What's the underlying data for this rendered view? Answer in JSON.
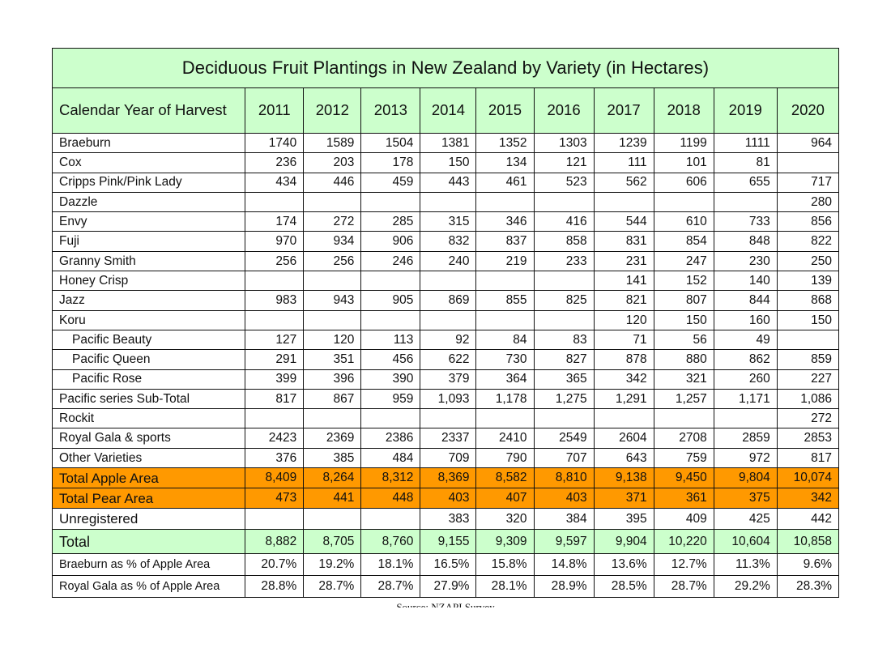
{
  "title": "Deciduous Fruit Plantings in New Zealand by Variety (in Hectares)",
  "row_header": "Calendar Year of Harvest",
  "source": "Source: NZAPI Survey",
  "colors": {
    "header_bg": "#ccffcc",
    "highlight_bg": "#ff9900",
    "border": "#111111"
  },
  "chart_data": {
    "type": "table",
    "title": "Deciduous Fruit Plantings in New Zealand by Variety (in Hectares)",
    "columns": [
      "2011",
      "2012",
      "2013",
      "2014",
      "2015",
      "2016",
      "2017",
      "2018",
      "2019",
      "2020"
    ],
    "rows": [
      {
        "label": "Braeburn",
        "values": [
          "1740",
          "1589",
          "1504",
          "1381",
          "1352",
          "1303",
          "1239",
          "1199",
          "1111",
          "964"
        ]
      },
      {
        "label": "Cox",
        "values": [
          "236",
          "203",
          "178",
          "150",
          "134",
          "121",
          "111",
          "101",
          "81",
          ""
        ]
      },
      {
        "label": "Cripps Pink/Pink Lady",
        "values": [
          "434",
          "446",
          "459",
          "443",
          "461",
          "523",
          "562",
          "606",
          "655",
          "717"
        ]
      },
      {
        "label": "Dazzle",
        "values": [
          "",
          "",
          "",
          "",
          "",
          "",
          "",
          "",
          "",
          "280"
        ]
      },
      {
        "label": "Envy",
        "values": [
          "174",
          "272",
          "285",
          "315",
          "346",
          "416",
          "544",
          "610",
          "733",
          "856"
        ]
      },
      {
        "label": "Fuji",
        "values": [
          "970",
          "934",
          "906",
          "832",
          "837",
          "858",
          "831",
          "854",
          "848",
          "822"
        ]
      },
      {
        "label": "Granny Smith",
        "values": [
          "256",
          "256",
          "246",
          "240",
          "219",
          "233",
          "231",
          "247",
          "230",
          "250"
        ]
      },
      {
        "label": "Honey Crisp",
        "values": [
          "",
          "",
          "",
          "",
          "",
          "",
          "141",
          "152",
          "140",
          "139"
        ]
      },
      {
        "label": "Jazz",
        "values": [
          "983",
          "943",
          "905",
          "869",
          "855",
          "825",
          "821",
          "807",
          "844",
          "868"
        ]
      },
      {
        "label": "Koru",
        "values": [
          "",
          "",
          "",
          "",
          "",
          "",
          "120",
          "150",
          "160",
          "150"
        ]
      },
      {
        "label": "Pacific Beauty",
        "indent": true,
        "values": [
          "127",
          "120",
          "113",
          "92",
          "84",
          "83",
          "71",
          "56",
          "49",
          ""
        ]
      },
      {
        "label": "Pacific Queen",
        "indent": true,
        "values": [
          "291",
          "351",
          "456",
          "622",
          "730",
          "827",
          "878",
          "880",
          "862",
          "859"
        ]
      },
      {
        "label": "Pacific Rose",
        "indent": true,
        "values": [
          "399",
          "396",
          "390",
          "379",
          "364",
          "365",
          "342",
          "321",
          "260",
          "227"
        ]
      },
      {
        "label": "Pacific series Sub-Total",
        "values": [
          "817",
          "867",
          "959",
          "1,093",
          "1,178",
          "1,275",
          "1,291",
          "1,257",
          "1,171",
          "1,086"
        ]
      },
      {
        "label": "Rockit",
        "values": [
          "",
          "",
          "",
          "",
          "",
          "",
          "",
          "",
          "",
          "272"
        ]
      },
      {
        "label": "Royal Gala & sports",
        "values": [
          "2423",
          "2369",
          "2386",
          "2337",
          "2410",
          "2549",
          "2604",
          "2708",
          "2859",
          "2853"
        ]
      },
      {
        "label": "Other Varieties",
        "values": [
          "376",
          "385",
          "484",
          "709",
          "790",
          "707",
          "643",
          "759",
          "972",
          "817"
        ]
      },
      {
        "label": "Total Apple Area",
        "style": "orange",
        "values": [
          "8,409",
          "8,264",
          "8,312",
          "8,369",
          "8,582",
          "8,810",
          "9,138",
          "9,450",
          "9,804",
          "10,074"
        ]
      },
      {
        "label": "Total Pear Area",
        "style": "orange",
        "values": [
          "473",
          "441",
          "448",
          "403",
          "407",
          "403",
          "371",
          "361",
          "375",
          "342"
        ]
      },
      {
        "label": "Unregistered",
        "style": "unreg",
        "values": [
          "",
          "",
          "",
          "383",
          "320",
          "384",
          "395",
          "409",
          "425",
          "442"
        ]
      },
      {
        "label": "Total",
        "style": "total",
        "values": [
          "8,882",
          "8,705",
          "8,760",
          "9,155",
          "9,309",
          "9,597",
          "9,904",
          "10,220",
          "10,604",
          "10,858"
        ]
      },
      {
        "label": "Braeburn as % of Apple Area",
        "style": "pct",
        "values": [
          "20.7%",
          "19.2%",
          "18.1%",
          "16.5%",
          "15.8%",
          "14.8%",
          "13.6%",
          "12.7%",
          "11.3%",
          "9.6%"
        ]
      },
      {
        "label": "Royal Gala as % of Apple Area",
        "style": "pct",
        "values": [
          "28.8%",
          "28.7%",
          "28.7%",
          "27.9%",
          "28.1%",
          "28.9%",
          "28.5%",
          "28.7%",
          "29.2%",
          "28.3%"
        ]
      }
    ]
  }
}
